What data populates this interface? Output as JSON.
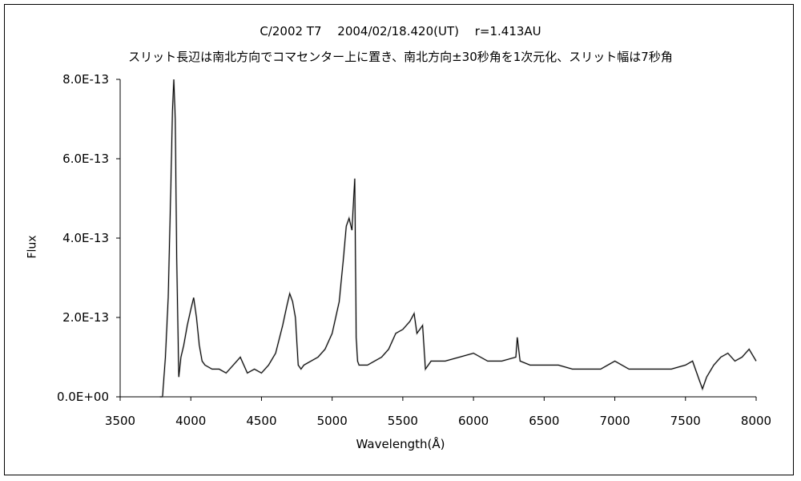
{
  "chart_data": {
    "type": "line",
    "title": "C/2002 T7　 2004/02/18.420(UT)　 r=1.413AU",
    "subtitle": "スリット長辺は南北方向でコマセンター上に置き、南北方向±30秒角を1次元化、スリット幅は7秒角",
    "xlabel": "Wavelength(Å)",
    "ylabel": "Flux",
    "xlim": [
      3500,
      8000
    ],
    "ylim": [
      0,
      8e-13
    ],
    "x_ticks": [
      3500,
      4000,
      4500,
      5000,
      5500,
      6000,
      6500,
      7000,
      7500,
      8000
    ],
    "x_tick_labels": [
      "3500",
      "4000",
      "4500",
      "5000",
      "5500",
      "6000",
      "6500",
      "7000",
      "7500",
      "8000"
    ],
    "y_ticks": [
      0,
      2e-13,
      4e-13,
      6e-13,
      8e-13
    ],
    "y_tick_labels": [
      "0.0E+00",
      "2.0E-13",
      "4.0E-13",
      "6.0E-13",
      "8.0E-13"
    ],
    "grid": false,
    "legend": "none",
    "series_color": "#000000",
    "noise_color": "#a0a0a0",
    "series": [
      {
        "x": [
          3780,
          3800,
          3820,
          3840,
          3860,
          3870,
          3880,
          3890,
          3900,
          3915,
          3930,
          3950,
          3975,
          4000,
          4020,
          4040,
          4060,
          4080,
          4100,
          4150,
          4200,
          4250,
          4300,
          4350,
          4400,
          4450,
          4500,
          4550,
          4600,
          4650,
          4680,
          4700,
          4720,
          4740,
          4760,
          4780,
          4800,
          4850,
          4900,
          4950,
          5000,
          5050,
          5080,
          5100,
          5120,
          5140,
          5160,
          5170,
          5180,
          5190,
          5200,
          5250,
          5300,
          5350,
          5400,
          5450,
          5500,
          5550,
          5580,
          5600,
          5620,
          5640,
          5660,
          5700,
          5800,
          5900,
          6000,
          6100,
          6200,
          6300,
          6310,
          6330,
          6400,
          6500,
          6600,
          6700,
          6800,
          6900,
          7000,
          7100,
          7200,
          7300,
          7400,
          7500,
          7550,
          7600,
          7620,
          7650,
          7700,
          7750,
          7800,
          7850,
          7900,
          7950,
          8000
        ],
        "y": [
          0,
          0,
          1e-13,
          2.5e-13,
          5.5e-13,
          7.2e-13,
          8e-13,
          7e-13,
          3.5e-13,
          5e-14,
          1e-13,
          1.3e-13,
          1.8e-13,
          2.2e-13,
          2.5e-13,
          2e-13,
          1.3e-13,
          9e-14,
          8e-14,
          7e-14,
          7e-14,
          6e-14,
          8e-14,
          1e-13,
          6e-14,
          7e-14,
          6e-14,
          8e-14,
          1.1e-13,
          1.8e-13,
          2.3e-13,
          2.6e-13,
          2.4e-13,
          2e-13,
          8e-14,
          7e-14,
          8e-14,
          9e-14,
          1e-13,
          1.2e-13,
          1.6e-13,
          2.4e-13,
          3.5e-13,
          4.3e-13,
          4.5e-13,
          4.2e-13,
          5.5e-13,
          1.5e-13,
          9e-14,
          8e-14,
          8e-14,
          8e-14,
          9e-14,
          1e-13,
          1.2e-13,
          1.6e-13,
          1.7e-13,
          1.9e-13,
          2.1e-13,
          1.6e-13,
          1.7e-13,
          1.8e-13,
          7e-14,
          9e-14,
          9e-14,
          1e-13,
          1.1e-13,
          9e-14,
          9e-14,
          1e-13,
          1.5e-13,
          9e-14,
          8e-14,
          8e-14,
          8e-14,
          7e-14,
          7e-14,
          7e-14,
          9e-14,
          7e-14,
          7e-14,
          7e-14,
          7e-14,
          8e-14,
          9e-14,
          4e-14,
          2e-14,
          5e-14,
          8e-14,
          1e-13,
          1.1e-13,
          9e-14,
          1e-13,
          1.2e-13,
          9e-14
        ]
      }
    ]
  }
}
